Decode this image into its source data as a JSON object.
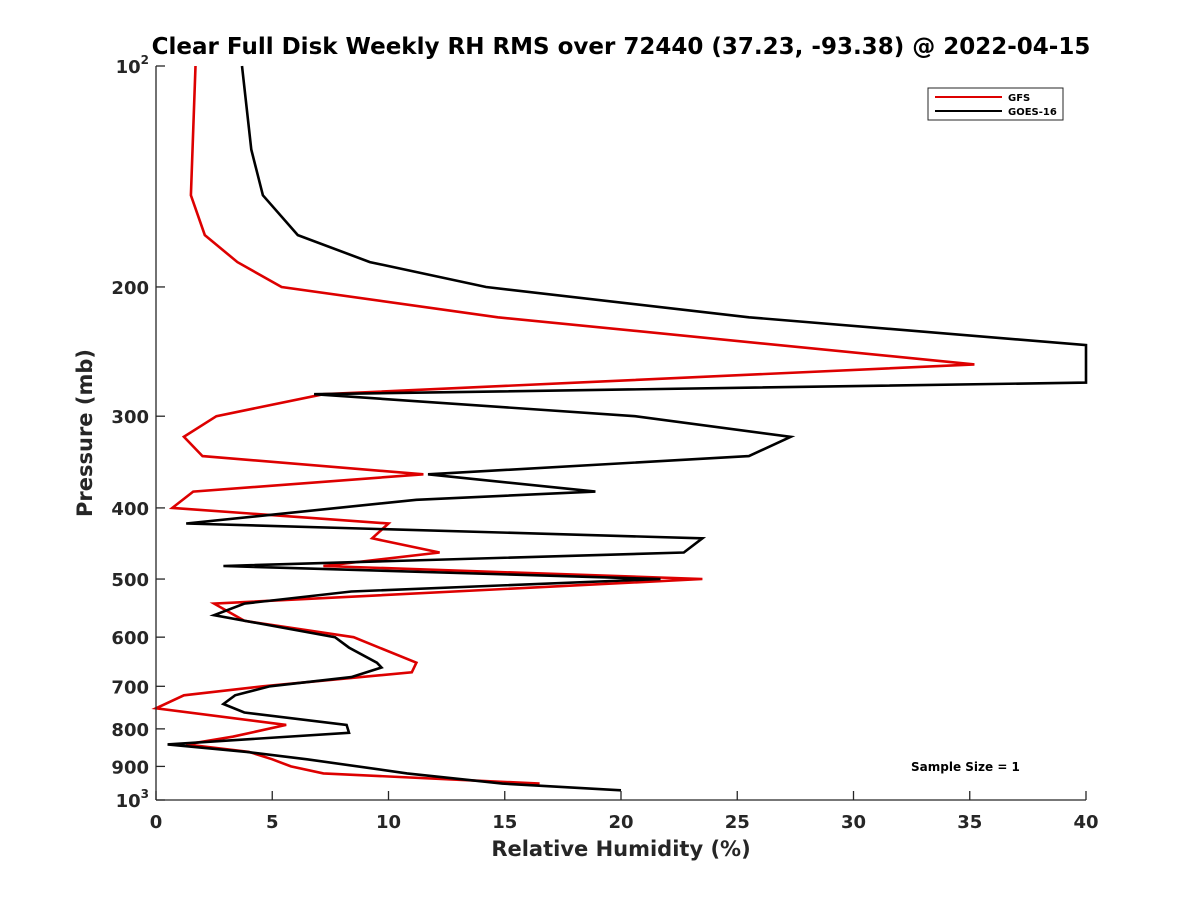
{
  "chart_data": {
    "type": "line",
    "title": "Clear Full Disk Weekly RH RMS over 72440 (37.23, -93.38) @ 2022-04-15",
    "xlabel": "Relative Humidity (%)",
    "ylabel": "Pressure (mb)",
    "xlim": [
      0,
      40
    ],
    "ylim": [
      100,
      1000
    ],
    "y_scale": "log",
    "y_reversed": true,
    "x_ticks": [
      "0",
      "5",
      "10",
      "15",
      "20",
      "25",
      "30",
      "35",
      "40"
    ],
    "y_ticks": [
      {
        "value": 100,
        "base": "10",
        "sup": "2"
      },
      {
        "value": 200,
        "base": "200",
        "sup": ""
      },
      {
        "value": 300,
        "base": "300",
        "sup": ""
      },
      {
        "value": 400,
        "base": "400",
        "sup": ""
      },
      {
        "value": 500,
        "base": "500",
        "sup": ""
      },
      {
        "value": 600,
        "base": "600",
        "sup": ""
      },
      {
        "value": 700,
        "base": "700",
        "sup": ""
      },
      {
        "value": 800,
        "base": "800",
        "sup": ""
      },
      {
        "value": 900,
        "base": "900",
        "sup": ""
      },
      {
        "value": 1000,
        "base": "10",
        "sup": "3"
      }
    ],
    "grid": false,
    "legend_position": "top-right",
    "annotation": "Sample Size = 1",
    "series": [
      {
        "name": "GFS",
        "color": "#dd0000",
        "points": [
          [
            1.7,
            100
          ],
          [
            1.5,
            150
          ],
          [
            2.1,
            170
          ],
          [
            3.5,
            185
          ],
          [
            5.4,
            200
          ],
          [
            14.7,
            220
          ],
          [
            35.2,
            255
          ],
          [
            7.2,
            280
          ],
          [
            2.6,
            300
          ],
          [
            1.2,
            320
          ],
          [
            2.0,
            340
          ],
          [
            11.5,
            360
          ],
          [
            1.6,
            380
          ],
          [
            0.7,
            400
          ],
          [
            10.0,
            420
          ],
          [
            9.3,
            440
          ],
          [
            12.2,
            460
          ],
          [
            7.2,
            480
          ],
          [
            23.5,
            500
          ],
          [
            2.5,
            540
          ],
          [
            3.8,
            570
          ],
          [
            8.5,
            600
          ],
          [
            11.2,
            650
          ],
          [
            11.0,
            670
          ],
          [
            4.6,
            700
          ],
          [
            1.2,
            720
          ],
          [
            0.0,
            750
          ],
          [
            5.6,
            790
          ],
          [
            3.3,
            820
          ],
          [
            1.3,
            840
          ],
          [
            4.0,
            860
          ],
          [
            5.0,
            880
          ],
          [
            5.8,
            900
          ],
          [
            7.2,
            920
          ],
          [
            16.5,
            950
          ]
        ]
      },
      {
        "name": "GOES-16",
        "color": "#000000",
        "points": [
          [
            3.7,
            100
          ],
          [
            4.1,
            130
          ],
          [
            4.6,
            150
          ],
          [
            6.1,
            170
          ],
          [
            9.2,
            185
          ],
          [
            14.2,
            200
          ],
          [
            25.5,
            220
          ],
          [
            40.0,
            240
          ],
          [
            40.0,
            270
          ],
          [
            6.8,
            280
          ],
          [
            20.6,
            300
          ],
          [
            27.3,
            320
          ],
          [
            25.5,
            340
          ],
          [
            11.7,
            360
          ],
          [
            18.9,
            380
          ],
          [
            11.2,
            390
          ],
          [
            1.3,
            420
          ],
          [
            23.5,
            440
          ],
          [
            22.7,
            460
          ],
          [
            2.9,
            480
          ],
          [
            21.7,
            500
          ],
          [
            8.4,
            520
          ],
          [
            3.8,
            540
          ],
          [
            2.5,
            560
          ],
          [
            7.7,
            600
          ],
          [
            8.3,
            620
          ],
          [
            9.5,
            650
          ],
          [
            9.7,
            660
          ],
          [
            8.4,
            680
          ],
          [
            4.9,
            700
          ],
          [
            3.4,
            720
          ],
          [
            2.9,
            740
          ],
          [
            3.8,
            760
          ],
          [
            8.2,
            790
          ],
          [
            8.3,
            810
          ],
          [
            0.5,
            840
          ],
          [
            3.9,
            860
          ],
          [
            6.5,
            880
          ],
          [
            10.8,
            920
          ],
          [
            14.9,
            950
          ],
          [
            20.0,
            970
          ]
        ]
      }
    ]
  }
}
